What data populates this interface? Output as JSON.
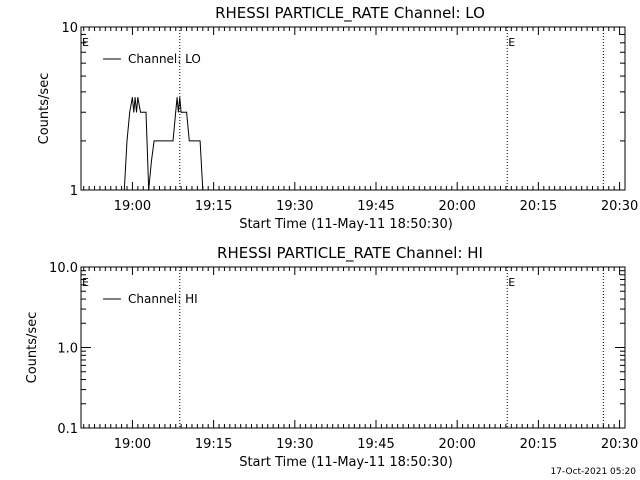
{
  "footer": {
    "timestamp": "17-Oct-2021 05:20"
  },
  "chart_data": [
    {
      "type": "line",
      "title": "RHESSI PARTICLE_RATE Channel: LO",
      "xlabel": "Start Time (11-May-11 18:50:30)",
      "ylabel": "Counts/sec",
      "yscale": "log",
      "ylim": [
        1,
        10
      ],
      "yticks": [
        1,
        10
      ],
      "ytick_labels": [
        "1",
        "10"
      ],
      "xlim": [
        "18:50:30",
        "20:31:00"
      ],
      "xticks": [
        "19:00",
        "19:15",
        "19:30",
        "19:45",
        "20:00",
        "20:15",
        "20:30"
      ],
      "grid": false,
      "legend": {
        "entries": [
          "Channel: LO"
        ],
        "position": "top-left"
      },
      "series": [
        {
          "name": "Channel: LO",
          "color": "#000000",
          "x": [
            "18:58:30",
            "18:59:00",
            "18:59:30",
            "19:00:00",
            "19:00:15",
            "19:00:30",
            "19:00:45",
            "19:01:00",
            "19:01:30",
            "19:02:00",
            "19:02:30",
            "19:03:00",
            "19:03:30",
            "19:04:00",
            "19:04:30",
            "19:05:00",
            "19:05:30",
            "19:06:00",
            "19:06:30",
            "19:07:00",
            "19:07:30",
            "19:08:00",
            "19:08:15",
            "19:08:30",
            "19:08:45",
            "19:09:00",
            "19:09:15",
            "19:09:30",
            "19:10:00",
            "19:10:30",
            "19:11:00",
            "19:11:30",
            "19:12:00",
            "19:12:30",
            "19:13:00"
          ],
          "values": [
            1,
            2,
            3,
            3.7,
            3,
            3.7,
            3,
            3.7,
            3,
            3,
            3,
            1,
            1.5,
            2,
            2,
            2,
            2,
            2,
            2,
            2,
            2,
            3,
            3.7,
            3,
            3.7,
            3,
            3,
            3,
            3,
            2,
            2,
            2,
            2,
            2,
            1
          ]
        }
      ],
      "markers": [
        {
          "x": "19:08:45",
          "label": ""
        },
        {
          "x": "20:09:15",
          "label": "E"
        },
        {
          "x": "20:27:00",
          "label": ""
        }
      ],
      "edge_label": "E"
    },
    {
      "type": "line",
      "title": "RHESSI PARTICLE_RATE Channel: HI",
      "xlabel": "Start Time (11-May-11 18:50:30)",
      "ylabel": "Counts/sec",
      "yscale": "log",
      "ylim": [
        0.1,
        10
      ],
      "yticks": [
        0.1,
        1,
        10
      ],
      "ytick_labels": [
        "0.1",
        "1.0",
        "10.0"
      ],
      "xlim": [
        "18:50:30",
        "20:31:00"
      ],
      "xticks": [
        "19:00",
        "19:15",
        "19:30",
        "19:45",
        "20:00",
        "20:15",
        "20:30"
      ],
      "grid": false,
      "legend": {
        "entries": [
          "Channel: HI"
        ],
        "position": "top-left"
      },
      "series": [
        {
          "name": "Channel: HI",
          "color": "#000000",
          "x": [],
          "values": []
        }
      ],
      "markers": [
        {
          "x": "19:08:45",
          "label": ""
        },
        {
          "x": "20:09:15",
          "label": "E"
        },
        {
          "x": "20:27:00",
          "label": ""
        }
      ],
      "edge_label": "E"
    }
  ]
}
